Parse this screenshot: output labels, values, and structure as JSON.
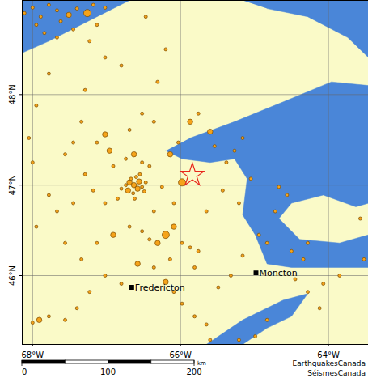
{
  "chart_data": {
    "type": "map",
    "xlim": [
      -68.14,
      -63.46
    ],
    "ylim": [
      45.24,
      49.04
    ],
    "xticks": [
      {
        "value": -68,
        "label": "68°W"
      },
      {
        "value": -66,
        "label": "66°W"
      },
      {
        "value": -64,
        "label": "64°W"
      }
    ],
    "yticks": [
      {
        "value": 46,
        "label": "46°N"
      },
      {
        "value": 47,
        "label": "47°N"
      },
      {
        "value": 48,
        "label": "48°N"
      }
    ],
    "grid": true,
    "color": "#f5a31a",
    "events": [
      [
        -68.11,
        48.9,
        1
      ],
      [
        -68.0,
        48.96,
        1
      ],
      [
        -67.89,
        48.86,
        1
      ],
      [
        -67.78,
        48.99,
        1
      ],
      [
        -67.67,
        48.93,
        1
      ],
      [
        -67.62,
        48.81,
        1
      ],
      [
        -67.51,
        48.88,
        2
      ],
      [
        -67.4,
        48.95,
        1
      ],
      [
        -67.26,
        48.9,
        3
      ],
      [
        -67.18,
        48.99,
        1
      ],
      [
        -67.84,
        48.68,
        1
      ],
      [
        -67.95,
        48.77,
        1
      ],
      [
        -67.13,
        48.77,
        1
      ],
      [
        -67.02,
        48.96,
        1
      ],
      [
        -67.67,
        48.63,
        1
      ],
      [
        -67.45,
        48.72,
        1
      ],
      [
        -67.23,
        48.59,
        1
      ],
      [
        -67.02,
        48.41,
        1
      ],
      [
        -66.8,
        48.32,
        1
      ],
      [
        -66.47,
        48.86,
        1
      ],
      [
        -66.2,
        48.5,
        1
      ],
      [
        -66.31,
        48.14,
        1
      ],
      [
        -66.52,
        47.79,
        1
      ],
      [
        -67.34,
        47.7,
        1
      ],
      [
        -67.29,
        48.05,
        1
      ],
      [
        -67.78,
        48.23,
        1
      ],
      [
        -67.95,
        47.88,
        1
      ],
      [
        -68.05,
        47.52,
        1
      ],
      [
        -68.0,
        47.25,
        1
      ],
      [
        -67.56,
        47.34,
        1
      ],
      [
        -67.45,
        47.47,
        1
      ],
      [
        -67.13,
        47.47,
        1
      ],
      [
        -67.02,
        47.56,
        2
      ],
      [
        -66.69,
        47.61,
        1
      ],
      [
        -66.36,
        47.7,
        1
      ],
      [
        -66.14,
        47.34,
        2
      ],
      [
        -66.03,
        47.47,
        1
      ],
      [
        -65.87,
        47.7,
        2
      ],
      [
        -65.76,
        47.79,
        1
      ],
      [
        -65.6,
        47.59,
        2
      ],
      [
        -65.54,
        47.43,
        1
      ],
      [
        -65.38,
        47.25,
        1
      ],
      [
        -65.27,
        47.38,
        1
      ],
      [
        -65.16,
        47.52,
        1
      ],
      [
        -65.05,
        47.07,
        1
      ],
      [
        -65.21,
        46.8,
        1
      ],
      [
        -65.43,
        46.94,
        1
      ],
      [
        -65.65,
        46.71,
        1
      ],
      [
        -65.98,
        47.03,
        3
      ],
      [
        -66.09,
        46.8,
        1
      ],
      [
        -66.36,
        46.71,
        1
      ],
      [
        -66.25,
        46.98,
        1
      ],
      [
        -66.91,
        47.21,
        1
      ],
      [
        -66.96,
        47.38,
        2
      ],
      [
        -66.74,
        47.29,
        1
      ],
      [
        -66.63,
        47.34,
        2
      ],
      [
        -66.52,
        47.25,
        1
      ],
      [
        -66.42,
        47.21,
        1
      ],
      [
        -66.85,
        46.85,
        1
      ],
      [
        -67.02,
        46.8,
        1
      ],
      [
        -67.18,
        46.94,
        1
      ],
      [
        -67.29,
        47.12,
        1
      ],
      [
        -67.45,
        46.8,
        1
      ],
      [
        -67.67,
        46.71,
        1
      ],
      [
        -67.78,
        46.89,
        1
      ],
      [
        -67.95,
        46.54,
        1
      ],
      [
        -67.56,
        46.36,
        1
      ],
      [
        -67.34,
        46.18,
        1
      ],
      [
        -67.13,
        46.36,
        1
      ],
      [
        -66.91,
        46.45,
        2
      ],
      [
        -66.69,
        46.54,
        1
      ],
      [
        -66.52,
        46.49,
        1
      ],
      [
        -66.42,
        46.4,
        1
      ],
      [
        -66.31,
        46.36,
        2
      ],
      [
        -66.2,
        46.45,
        3
      ],
      [
        -66.09,
        46.54,
        2
      ],
      [
        -65.98,
        46.36,
        1
      ],
      [
        -65.87,
        46.31,
        1
      ],
      [
        -65.76,
        46.27,
        1
      ],
      [
        -65.81,
        46.09,
        1
      ],
      [
        -66.14,
        46.18,
        1
      ],
      [
        -66.36,
        46.09,
        1
      ],
      [
        -66.58,
        46.13,
        2
      ],
      [
        -66.8,
        45.91,
        1
      ],
      [
        -67.02,
        46.0,
        1
      ],
      [
        -67.23,
        45.82,
        1
      ],
      [
        -67.4,
        45.64,
        1
      ],
      [
        -67.56,
        45.51,
        1
      ],
      [
        -67.78,
        45.55,
        1
      ],
      [
        -67.91,
        45.51,
        2
      ],
      [
        -68.0,
        45.48,
        1
      ],
      [
        -66.2,
        45.93,
        2
      ],
      [
        -66.09,
        45.82,
        1
      ],
      [
        -65.98,
        45.69,
        1
      ],
      [
        -65.81,
        45.55,
        1
      ],
      [
        -65.65,
        45.46,
        1
      ],
      [
        -65.49,
        45.87,
        1
      ],
      [
        -65.32,
        46.0,
        1
      ],
      [
        -65.16,
        46.22,
        1
      ],
      [
        -64.94,
        46.45,
        1
      ],
      [
        -64.83,
        46.36,
        1
      ],
      [
        -64.72,
        46.71,
        1
      ],
      [
        -64.56,
        46.89,
        1
      ],
      [
        -64.67,
        46.98,
        1
      ],
      [
        -64.5,
        46.27,
        1
      ],
      [
        -64.34,
        46.18,
        1
      ],
      [
        -64.45,
        45.96,
        1
      ],
      [
        -64.28,
        45.82,
        1
      ],
      [
        -64.07,
        45.91,
        1
      ],
      [
        -63.85,
        46.0,
        1
      ],
      [
        -64.12,
        45.64,
        1
      ],
      [
        -64.83,
        45.51,
        1
      ],
      [
        -65.21,
        45.29,
        1
      ],
      [
        -64.99,
        45.33,
        1
      ],
      [
        -65.6,
        45.29,
        1
      ],
      [
        -64.28,
        46.36,
        1
      ],
      [
        -63.57,
        46.63,
        1
      ],
      [
        -63.52,
        46.18,
        1
      ],
      [
        -66.69,
        47.03,
        2
      ],
      [
        -66.63,
        47.0,
        2
      ],
      [
        -66.58,
        46.96,
        2
      ],
      [
        -66.71,
        46.94,
        2
      ],
      [
        -66.67,
        47.07,
        1
      ],
      [
        -66.6,
        47.09,
        1
      ],
      [
        -66.56,
        47.04,
        2
      ],
      [
        -66.52,
        46.98,
        1
      ],
      [
        -66.74,
        47.0,
        1
      ],
      [
        -66.64,
        46.91,
        1
      ],
      [
        -66.8,
        46.96,
        1
      ],
      [
        -66.49,
        46.93,
        1
      ],
      [
        -66.62,
        46.85,
        1
      ],
      [
        -66.47,
        47.03,
        1
      ],
      [
        -66.55,
        47.12,
        1
      ]
    ],
    "epicentre": {
      "lon": -65.84,
      "lat": 47.11,
      "marker": "star",
      "color": "#e8261c"
    },
    "cities": [
      {
        "name": "Fredericton",
        "lon": -66.66,
        "lat": 45.87
      },
      {
        "name": "Moncton",
        "lon": -64.98,
        "lat": 46.03
      }
    ],
    "water": [
      [
        [
          -68.14,
          49.04
        ],
        [
          -66.69,
          49.04
        ],
        [
          -67.13,
          48.86
        ],
        [
          -67.78,
          48.59
        ],
        [
          -68.14,
          48.46
        ]
      ],
      [
        [
          -65.16,
          49.04
        ],
        [
          -63.46,
          49.04
        ],
        [
          -63.46,
          48.41
        ],
        [
          -63.74,
          48.63
        ],
        [
          -64.28,
          48.86
        ],
        [
          -64.83,
          48.95
        ]
      ],
      [
        [
          -65.87,
          47.52
        ],
        [
          -65.27,
          47.7
        ],
        [
          -64.61,
          47.92
        ],
        [
          -63.96,
          48.14
        ],
        [
          -63.46,
          48.1
        ],
        [
          -63.46,
          46.8
        ],
        [
          -63.63,
          46.76
        ],
        [
          -64.07,
          46.89
        ],
        [
          -64.5,
          46.8
        ],
        [
          -64.67,
          46.63
        ],
        [
          -64.39,
          46.4
        ],
        [
          -63.85,
          46.36
        ],
        [
          -63.46,
          46.45
        ],
        [
          -63.46,
          46.09
        ],
        [
          -64.07,
          46.09
        ],
        [
          -64.5,
          46.09
        ],
        [
          -64.83,
          46.13
        ],
        [
          -64.99,
          46.45
        ],
        [
          -65.16,
          46.67
        ],
        [
          -65.1,
          47.07
        ],
        [
          -65.27,
          47.29
        ],
        [
          -65.6,
          47.25
        ],
        [
          -65.98,
          47.29
        ],
        [
          -66.2,
          47.38
        ]
      ],
      [
        [
          -65.65,
          45.24
        ],
        [
          -65.16,
          45.51
        ],
        [
          -64.61,
          45.73
        ],
        [
          -64.28,
          45.8
        ],
        [
          -64.5,
          45.55
        ],
        [
          -64.83,
          45.42
        ],
        [
          -65.16,
          45.24
        ]
      ]
    ],
    "scale_bar": {
      "ticks": [
        0,
        100,
        200
      ],
      "unit": "km"
    },
    "credit": [
      "EarthquakesCanada",
      "SéismesCanada"
    ]
  }
}
